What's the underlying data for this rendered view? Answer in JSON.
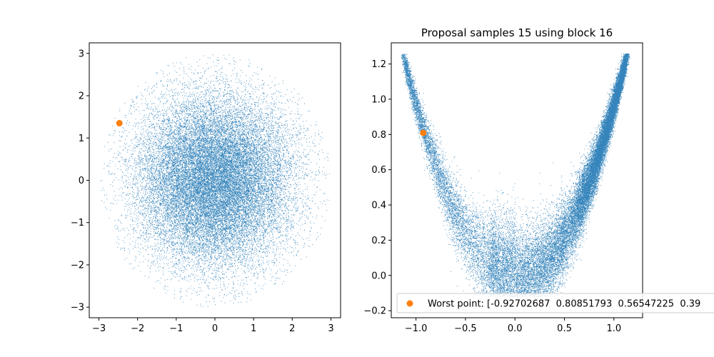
{
  "chart_data": [
    {
      "type": "scatter",
      "title": "",
      "xlabel": "",
      "ylabel": "",
      "xlim": [
        -3.25,
        3.25
      ],
      "ylim": [
        -3.25,
        3.25
      ],
      "xticks": [
        -3,
        -2,
        -1,
        0,
        1,
        2,
        3
      ],
      "yticks": [
        -3,
        -2,
        -1,
        0,
        1,
        2,
        3
      ],
      "xtick_labels": [
        "−3",
        "−2",
        "−1",
        "0",
        "1",
        "2",
        "3"
      ],
      "ytick_labels": [
        "−3",
        "−2",
        "−1",
        "0",
        "1",
        "2",
        "3"
      ],
      "grid": false,
      "sample_color": "#1f77b4",
      "sample_distribution": "standard normal, truncated at radius 3",
      "highlight_point": {
        "x": -2.47,
        "y": 1.35,
        "color": "#ff7f0e"
      }
    },
    {
      "type": "scatter",
      "title": "Proposal samples 15 using block 16",
      "xlabel": "",
      "ylabel": "",
      "xlim": [
        -1.25,
        1.29
      ],
      "ylim": [
        -0.24,
        1.32
      ],
      "xticks": [
        -1.0,
        -0.5,
        0.0,
        0.5,
        1.0
      ],
      "yticks": [
        -0.2,
        0.0,
        0.2,
        0.4,
        0.6,
        0.8,
        1.0,
        1.2
      ],
      "xtick_labels": [
        "−1.0",
        "−0.5",
        "0.0",
        "0.5",
        "1.0"
      ],
      "ytick_labels": [
        "−0.2",
        "0.0",
        "0.2",
        "0.4",
        "0.6",
        "0.8",
        "1.0",
        "1.2"
      ],
      "grid": false,
      "sample_color": "#1f77b4",
      "sample_distribution": "banana shaped, y ≈ x², densest near x ≈ 0.8–1.1",
      "highlight_point": {
        "x": -0.927,
        "y": 0.809,
        "color": "#ff7f0e"
      },
      "legend": {
        "placement": "lower-left",
        "entries": [
          {
            "label": "Worst point: [-0.92702687  0.80851793  0.56547225  0.39",
            "marker_color": "#ff7f0e"
          }
        ]
      }
    }
  ]
}
